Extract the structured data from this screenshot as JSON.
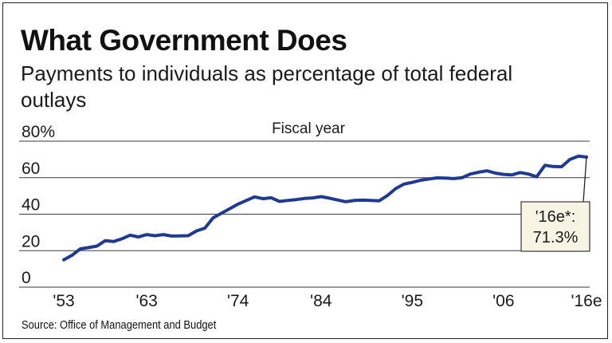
{
  "chart_data": {
    "type": "line",
    "title": "What Government Does",
    "subtitle": "Payments to individuals as percentage of total federal outlays",
    "xlabel": "Fiscal year",
    "ylabel": "",
    "ylim": [
      0,
      80
    ],
    "xlim": [
      1953,
      2016
    ],
    "y_ticks": [
      0,
      20,
      40,
      60,
      80
    ],
    "y_tick_labels": [
      "0",
      "20",
      "40",
      "60",
      "80%"
    ],
    "x_ticks": [
      1953,
      1963,
      1974,
      1984,
      1995,
      2006,
      2016
    ],
    "x_tick_labels": [
      "'53",
      "'63",
      "'74",
      "'84",
      "'95",
      "'06",
      "'16e"
    ],
    "grid": true,
    "series": [
      {
        "color": "#1f3a93",
        "x": [
          1953,
          1954,
          1955,
          1956,
          1957,
          1958,
          1959,
          1960,
          1961,
          1962,
          1963,
          1964,
          1965,
          1966,
          1967,
          1968,
          1969,
          1970,
          1971,
          1972,
          1973,
          1974,
          1975,
          1976,
          1977,
          1978,
          1979,
          1980,
          1981,
          1982,
          1983,
          1984,
          1985,
          1986,
          1987,
          1988,
          1989,
          1990,
          1991,
          1992,
          1993,
          1994,
          1995,
          1996,
          1997,
          1998,
          1999,
          2000,
          2001,
          2002,
          2003,
          2004,
          2005,
          2006,
          2007,
          2008,
          2009,
          2010,
          2011,
          2012,
          2013,
          2014,
          2015,
          2016
        ],
        "y": [
          15.0,
          17.5,
          21.0,
          21.7,
          22.5,
          25.5,
          25.0,
          26.5,
          28.5,
          27.5,
          28.8,
          28.2,
          28.8,
          28.0,
          28.1,
          28.2,
          30.8,
          32.3,
          38.0,
          40.5,
          43.0,
          45.5,
          47.5,
          49.5,
          48.5,
          49.0,
          47.0,
          47.5,
          48.0,
          48.6,
          48.9,
          49.6,
          48.8,
          47.8,
          46.8,
          47.5,
          47.7,
          47.5,
          47.3,
          50.2,
          54.0,
          56.5,
          57.4,
          58.6,
          59.3,
          59.9,
          59.8,
          59.5,
          60.0,
          62.0,
          63.0,
          63.8,
          62.5,
          61.8,
          61.5,
          62.8,
          62.0,
          60.5,
          66.8,
          66.1,
          66.0,
          70.0,
          71.8,
          71.3
        ]
      }
    ],
    "annotations": [
      {
        "text_line1": "'16e*:",
        "text_line2": "71.3%",
        "x": 2016,
        "y": 71.3
      }
    ],
    "source": "Source: Office of Management and Budget"
  }
}
